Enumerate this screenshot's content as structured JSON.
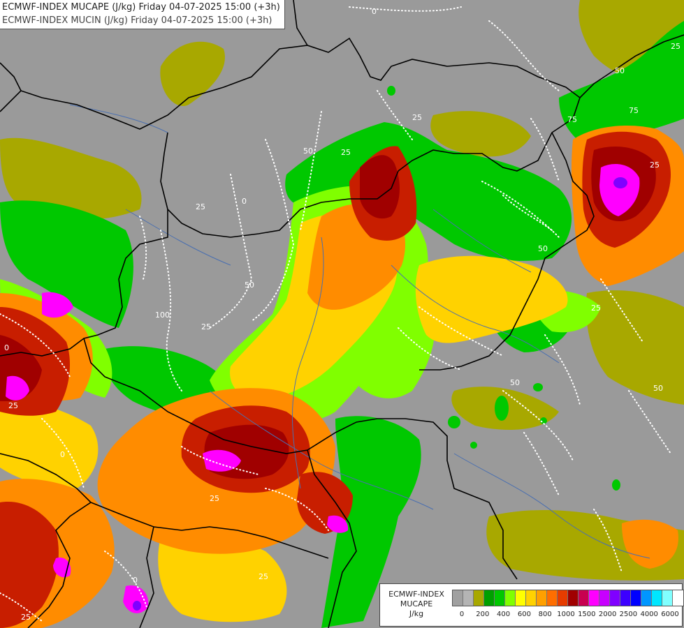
{
  "title": {
    "line1": "ECMWF-INDEX MUCAPE (J/kg) Friday 04-07-2025 15:00 (+3h)",
    "line2": "ECMWF-INDEX MUCIN (J/kg) Friday 04-07-2025 15:00 (+3h)"
  },
  "legend": {
    "model": "ECMWF-INDEX",
    "field": "MUCAPE",
    "unit": "J/kg",
    "colors": [
      "#a0a0a0",
      "#b4b4b4",
      "#a8a800",
      "#00a000",
      "#00c800",
      "#80ff00",
      "#ffff00",
      "#ffd200",
      "#ffa000",
      "#ff6e00",
      "#e63c00",
      "#a00000",
      "#c80050",
      "#ff00ff",
      "#c800ff",
      "#8000ff",
      "#3c00ff",
      "#0000ff",
      "#0096ff",
      "#00e6ff",
      "#80ffff",
      "#ffffff"
    ],
    "tick_labels": [
      "0",
      "200",
      "400",
      "600",
      "800",
      "1000",
      "1500",
      "2000",
      "2500",
      "4000",
      "6000"
    ]
  },
  "mucin_contour_labels": [
    "0",
    "25",
    "50",
    "75",
    "100"
  ],
  "colors": {
    "background": "#9a9a9a",
    "border_lines": "#000000",
    "rivers": "#4a6fb0",
    "mucin_contours": "#ffffff"
  }
}
